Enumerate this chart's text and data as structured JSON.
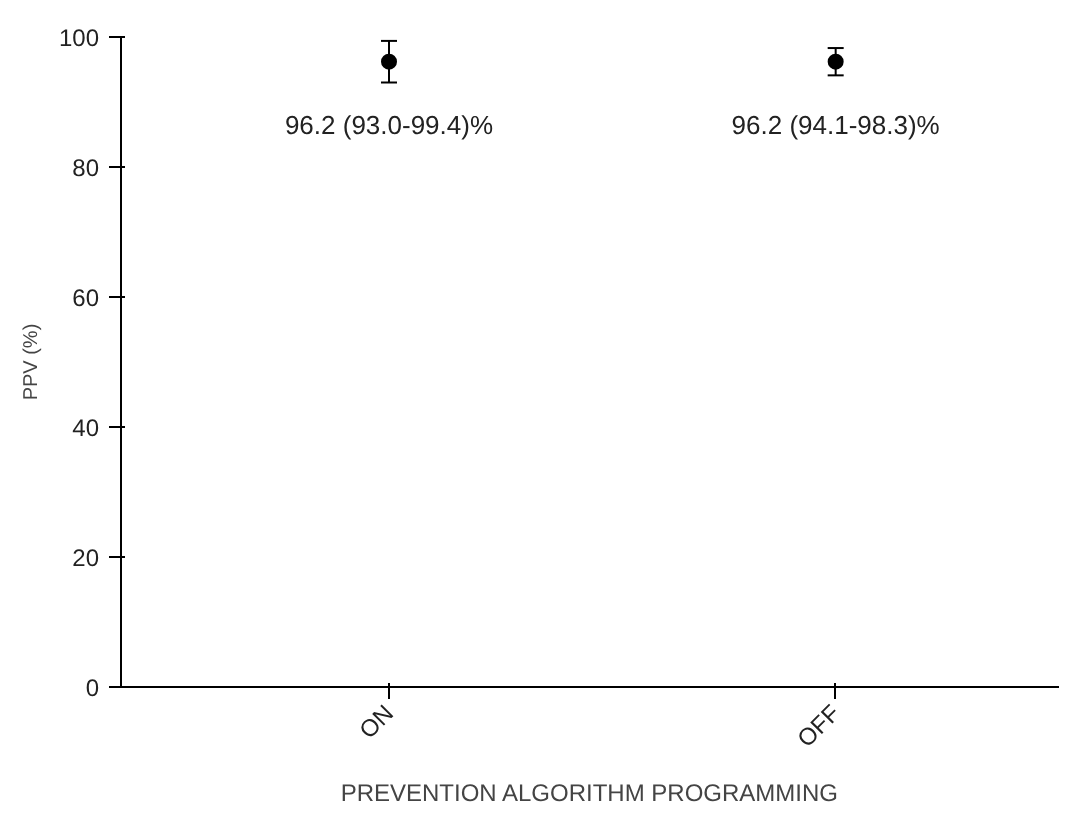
{
  "chart_data": {
    "type": "scatter",
    "xlabel": "PREVENTION ALGORITHM PROGRAMMING",
    "ylabel": "PPV (%)",
    "categories": [
      "ON",
      "OFF"
    ],
    "series": [
      {
        "color": "#000000",
        "values": [
          96.2,
          96.2
        ],
        "errors": [
          [
            93.0,
            99.4
          ],
          [
            94.1,
            98.3
          ]
        ],
        "value_labels": [
          "96.2 (93.0-99.4)%",
          "96.2 (94.1-98.3)%"
        ]
      }
    ],
    "ylim": [
      0,
      100
    ],
    "yticks": [
      0,
      20,
      40,
      60,
      80,
      100
    ],
    "marker": "circle",
    "grid": false
  }
}
